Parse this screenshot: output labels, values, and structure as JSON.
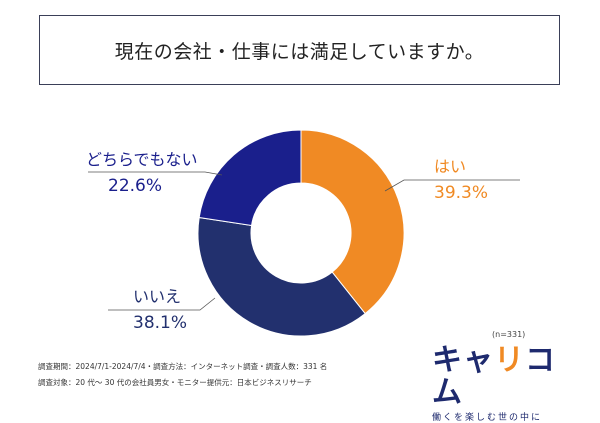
{
  "header": {
    "title": "現在の会社・仕事には満足していますか。"
  },
  "chart_data": {
    "type": "pie",
    "categories": [
      "はい",
      "いいえ",
      "どちらでもない"
    ],
    "values": [
      39.3,
      38.1,
      22.6
    ],
    "labels": [
      "39.3%",
      "38.1%",
      "22.6%"
    ],
    "colors": [
      "#f08a24",
      "#22306e",
      "#1a1f8c"
    ],
    "donut": true
  },
  "sample": {
    "n_label": "(n=331)"
  },
  "footnotes": {
    "line1": "調査期間：2024/7/1-2024/7/4・調査方法：インターネット調査・調査人数：331 名",
    "line2": "調査対象：20 代～ 30 代の会社員男女・モニター提供元：日本ビジネスリサーチ"
  },
  "brand": {
    "name_part1": "キャ",
    "name_accent": "リ",
    "name_part2": "コム",
    "tagline": "働くを楽しむ世の中に"
  }
}
